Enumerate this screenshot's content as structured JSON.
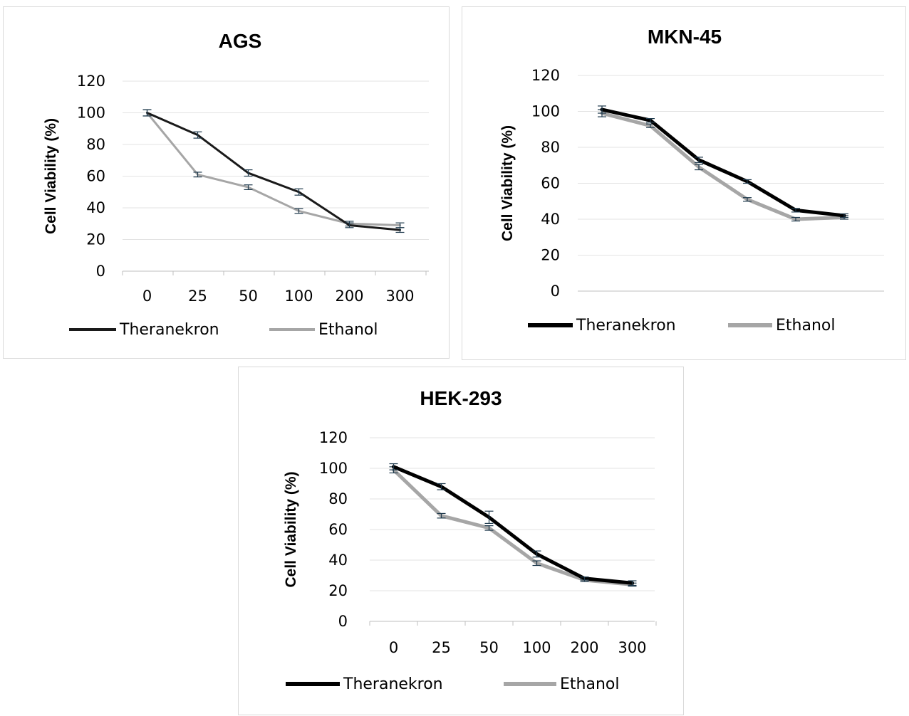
{
  "chart_data": [
    {
      "type": "line",
      "title": "AGS",
      "xlabel": "",
      "ylabel": "Cell Viability (%)",
      "categories": [
        "0",
        "25",
        "50",
        "100",
        "200",
        "300"
      ],
      "ylim": [
        0,
        120
      ],
      "yticks": [
        0,
        20,
        40,
        60,
        80,
        100,
        120
      ],
      "grid": true,
      "legend": "bottom",
      "series": [
        {
          "name": "Theranekron",
          "color": "#1a1a1a",
          "values": [
            100,
            86,
            62,
            50,
            29,
            26
          ],
          "errors": [
            2,
            2,
            2,
            2,
            1.5,
            1.5
          ]
        },
        {
          "name": "Ethanol",
          "color": "#a6a6a6",
          "values": [
            100,
            61,
            53,
            38,
            30,
            29
          ],
          "errors": [
            2,
            1.5,
            1.5,
            1.5,
            1.5,
            1.5
          ]
        }
      ]
    },
    {
      "type": "line",
      "title": "MKN-45",
      "xlabel": "",
      "ylabel": "Cell Viability (%)",
      "categories": [
        "",
        "",
        "",
        "",
        "",
        ""
      ],
      "ylim": [
        0,
        120
      ],
      "yticks": [
        0,
        20,
        40,
        60,
        80,
        100,
        120
      ],
      "grid": true,
      "legend": "bottom",
      "series": [
        {
          "name": "Theranekron",
          "color": "#000000",
          "values": [
            101,
            95,
            73,
            61,
            45,
            42
          ],
          "errors": [
            2,
            1,
            1.5,
            1,
            1,
            1
          ]
        },
        {
          "name": "Ethanol",
          "color": "#a6a6a6",
          "values": [
            99,
            92,
            69,
            51,
            40,
            41
          ],
          "errors": [
            2,
            1,
            1.5,
            1,
            1,
            1
          ]
        }
      ]
    },
    {
      "type": "line",
      "title": "HEK-293",
      "xlabel": "",
      "ylabel": "Cell Viability (%)",
      "categories": [
        "0",
        "25",
        "50",
        "100",
        "200",
        "300"
      ],
      "ylim": [
        0,
        120
      ],
      "yticks": [
        0,
        20,
        40,
        60,
        80,
        100,
        120
      ],
      "grid": true,
      "legend": "bottom",
      "series": [
        {
          "name": "Theranekron",
          "color": "#000000",
          "values": [
            101,
            88,
            68,
            44,
            28,
            25
          ],
          "errors": [
            2,
            2,
            4,
            2,
            1,
            1.5
          ]
        },
        {
          "name": "Ethanol",
          "color": "#a6a6a6",
          "values": [
            99,
            69,
            61,
            38,
            27,
            24
          ],
          "errors": [
            2,
            1.5,
            1.5,
            1.5,
            1,
            1
          ]
        }
      ]
    }
  ]
}
